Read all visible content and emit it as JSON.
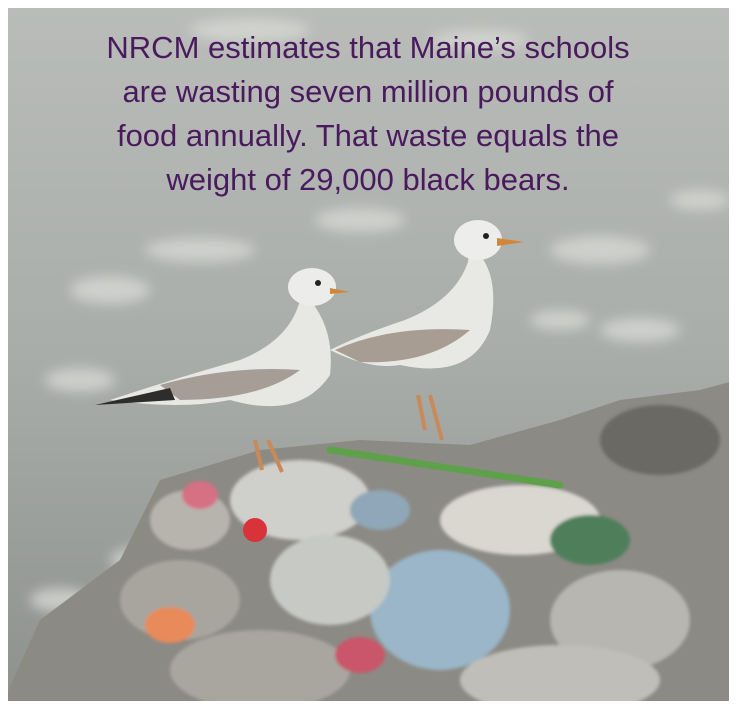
{
  "overlay": {
    "lines": [
      "NRCM estimates that Maine’s schools",
      "are wasting seven million pounds of",
      "food annually. That waste equals the",
      "weight of 29,000 black bears."
    ]
  }
}
